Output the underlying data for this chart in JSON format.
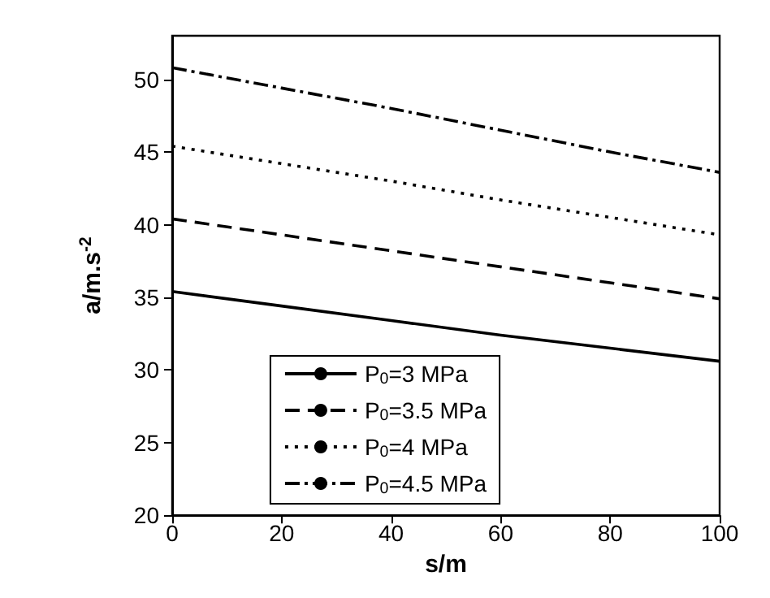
{
  "chart_data": {
    "type": "line",
    "xlabel": "s/m",
    "ylabel": "a/m.s$^{-2}$",
    "xlim": [
      0,
      100
    ],
    "ylim": [
      20,
      53
    ],
    "xticks": [
      0,
      20,
      40,
      60,
      80,
      100
    ],
    "yticks": [
      20,
      25,
      30,
      35,
      40,
      45,
      50
    ],
    "grid": false,
    "legend": "bottom",
    "marker": "none",
    "series": [
      {
        "name": "P$_{0}$=3 MPa",
        "color": "#000000",
        "line_style": "solid",
        "x": [
          0,
          20,
          40,
          60,
          80,
          100
        ],
        "values": [
          35.4,
          34.4,
          33.4,
          32.4,
          31.5,
          30.6
        ]
      },
      {
        "name": "P$_{0}$=3.5 MPa",
        "color": "#000000",
        "line_style": "dashed",
        "x": [
          0,
          20,
          40,
          60,
          80,
          100
        ],
        "values": [
          40.4,
          39.3,
          38.2,
          37.1,
          36.0,
          34.9
        ]
      },
      {
        "name": "P$_{0}$=4 MPa",
        "color": "#000000",
        "line_style": "dotted",
        "x": [
          0,
          20,
          40,
          60,
          80,
          100
        ],
        "values": [
          45.4,
          44.2,
          43.0,
          41.7,
          40.5,
          39.3
        ]
      },
      {
        "name": "P$_{0}$=4.5 MPa",
        "color": "#000000",
        "line_style": "dashdot",
        "x": [
          0,
          20,
          40,
          60,
          80,
          100
        ],
        "values": [
          50.8,
          49.4,
          48.0,
          46.5,
          45.0,
          43.6
        ]
      }
    ]
  }
}
